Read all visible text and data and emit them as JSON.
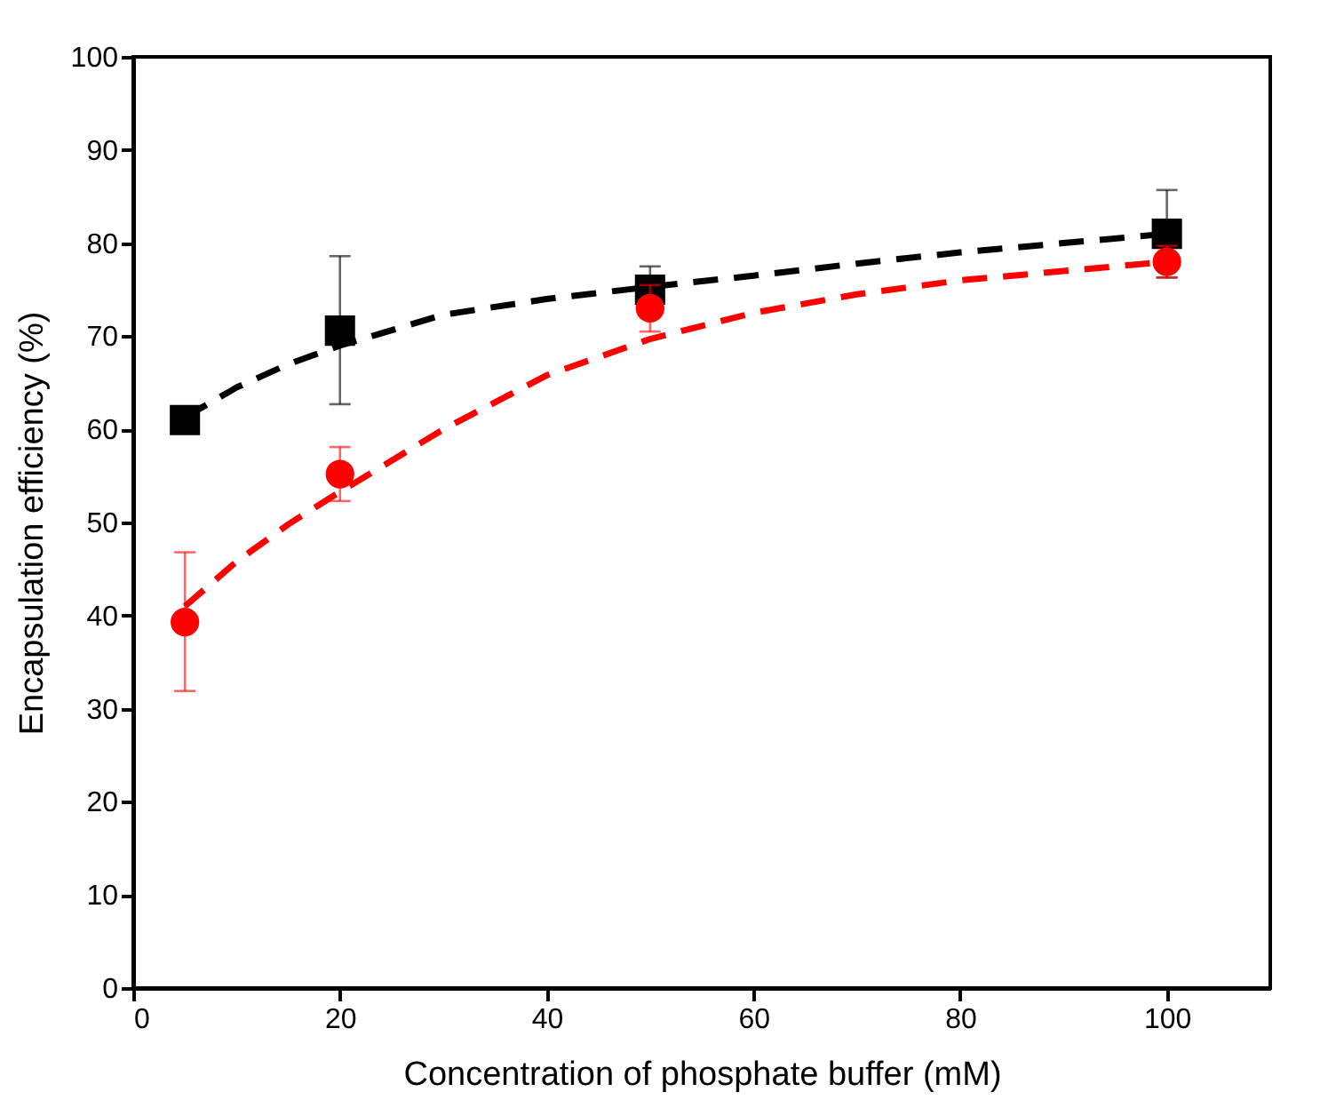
{
  "chart_data": {
    "type": "scatter",
    "xlabel": "Concentration of phosphate buffer  (mM)",
    "ylabel": "Encapsulation efficiency (%)",
    "xlim": [
      0,
      110
    ],
    "xticks": [
      0,
      20,
      40,
      60,
      80,
      100
    ],
    "ylim": [
      0,
      100
    ],
    "yticks": [
      0,
      10,
      20,
      30,
      40,
      50,
      60,
      70,
      80,
      90,
      100
    ],
    "grid": false,
    "series": [
      {
        "type": "line",
        "color": "#000000",
        "line_style": "dashed",
        "marker": "none",
        "x": [
          5,
          10,
          15,
          20,
          30,
          40,
          50,
          60,
          70,
          80,
          90,
          100
        ],
        "values": [
          61.3,
          64.5,
          67,
          69,
          72.3,
          74,
          75.3,
          76.5,
          77.8,
          79,
          80,
          81
        ]
      },
      {
        "type": "line",
        "color": "#ff0000",
        "line_style": "dashed",
        "marker": "none",
        "x": [
          5,
          10,
          15,
          20,
          30,
          40,
          50,
          60,
          70,
          80,
          90,
          100
        ],
        "values": [
          41,
          45.8,
          49.8,
          53.3,
          60,
          65.8,
          69.7,
          72.5,
          74.5,
          76,
          77,
          78
        ]
      },
      {
        "color": "#000000",
        "marker": "square",
        "x": [
          5,
          20,
          50,
          100
        ],
        "values": [
          61,
          70.6,
          75,
          81
        ],
        "errors": [
          null,
          [
            62.7,
            78.6
          ],
          [
            75,
            77.5
          ],
          [
            76.3,
            85.7
          ]
        ]
      },
      {
        "color": "#ff0000",
        "marker": "circle",
        "x": [
          5,
          20,
          50,
          100
        ],
        "values": [
          39.3,
          55.2,
          73,
          78
        ],
        "errors": [
          [
            31.9,
            46.8
          ],
          [
            52.3,
            58.1
          ],
          [
            70.5,
            75.5
          ],
          [
            76.3,
            79.7
          ]
        ]
      }
    ]
  }
}
